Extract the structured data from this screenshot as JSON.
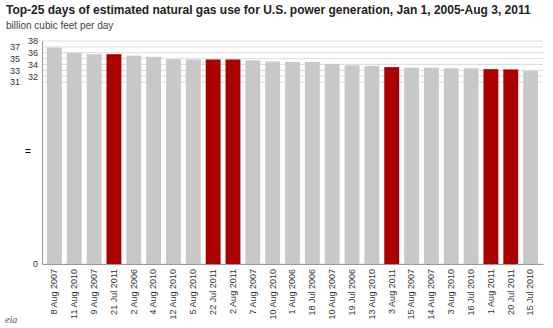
{
  "chart_data": {
    "type": "bar",
    "title": "Top-25 days of estimated natural gas use for U.S. power generation, Jan 1, 2005-Aug 3, 2011",
    "subtitle": "billion cubic feet per day",
    "categories": [
      "8 Aug 2007",
      "11 Aug 2010",
      "9 Aug 2007",
      "21 Jul 2011",
      "2 Aug 2006",
      "4 Aug 2010",
      "12 Aug 2010",
      "5 Aug 2010",
      "22 Jul 2011",
      "2 Aug 2011",
      "7 Aug 2007",
      "10 Aug 2010",
      "1 Aug 2006",
      "18 Jul 2006",
      "10 Aug 2007",
      "19 Jul 2006",
      "13 Aug 2010",
      "3 Aug 2011",
      "15 Aug 2007",
      "14 Aug 2007",
      "3 Aug 2010",
      "16 Jul 2010",
      "1 Aug 2011",
      "20 Jul 2011",
      "15 Jul 2010"
    ],
    "values": [
      36.9,
      36.0,
      35.75,
      35.75,
      35.5,
      35.3,
      34.9,
      34.85,
      34.85,
      34.85,
      34.7,
      34.5,
      34.45,
      34.45,
      34.1,
      33.85,
      33.75,
      33.55,
      33.45,
      33.45,
      33.35,
      33.35,
      33.2,
      33.15,
      32.9
    ],
    "colors": [
      "#c8c8c8",
      "#c8c8c8",
      "#c8c8c8",
      "#aa0000",
      "#c8c8c8",
      "#c8c8c8",
      "#c8c8c8",
      "#c8c8c8",
      "#aa0000",
      "#aa0000",
      "#c8c8c8",
      "#c8c8c8",
      "#c8c8c8",
      "#c8c8c8",
      "#c8c8c8",
      "#c8c8c8",
      "#c8c8c8",
      "#aa0000",
      "#c8c8c8",
      "#c8c8c8",
      "#c8c8c8",
      "#c8c8c8",
      "#aa0000",
      "#aa0000",
      "#c8c8c8"
    ],
    "ylim": [
      0,
      38
    ],
    "yticks": [
      0,
      31,
      32,
      33,
      34,
      35,
      36,
      37,
      38
    ],
    "grid": true,
    "annotations": [
      "=",
      "eia"
    ]
  }
}
